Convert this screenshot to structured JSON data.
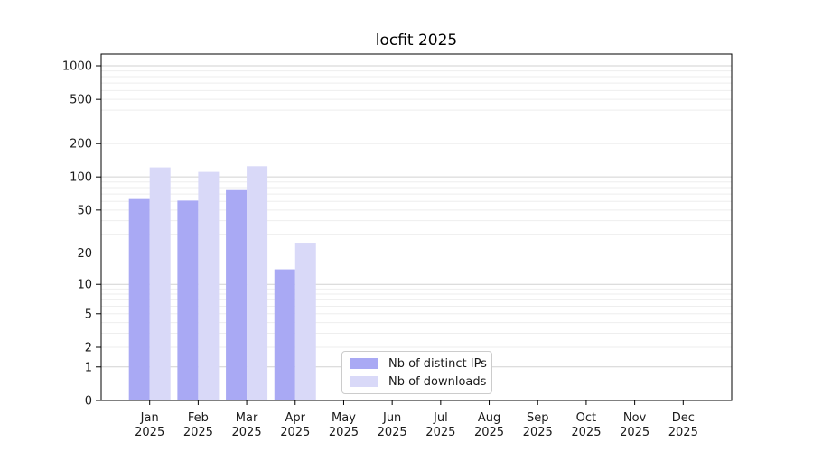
{
  "title": "locfit 2025",
  "chart_data": {
    "type": "bar",
    "title": "locfit 2025",
    "categories": [
      "Jan 2025",
      "Feb 2025",
      "Mar 2025",
      "Apr 2025",
      "May 2025",
      "Jun 2025",
      "Jul 2025",
      "Aug 2025",
      "Sep 2025",
      "Oct 2025",
      "Nov 2025",
      "Dec 2025"
    ],
    "months": [
      "Jan",
      "Feb",
      "Mar",
      "Apr",
      "May",
      "Jun",
      "Jul",
      "Aug",
      "Sep",
      "Oct",
      "Nov",
      "Dec"
    ],
    "year_label": "2025",
    "series": [
      {
        "name": "Nb of distinct IPs",
        "color": "#a9a9f4",
        "values": [
          63,
          61,
          76,
          14,
          0,
          0,
          0,
          0,
          0,
          0,
          0,
          0
        ]
      },
      {
        "name": "Nb of downloads",
        "color": "#d9d9f8",
        "values": [
          122,
          111,
          125,
          25,
          0,
          0,
          0,
          0,
          0,
          0,
          0,
          0
        ]
      }
    ],
    "xlabel": "",
    "ylabel": "",
    "yscale": "log1p",
    "yticks": [
      0,
      1,
      2,
      5,
      10,
      20,
      50,
      100,
      200,
      500,
      1000
    ],
    "ylim": [
      0,
      1280
    ],
    "grid": "horizontal major (decades, darker) + minor (faint)",
    "legend_position": "inside bottom-center",
    "colors": {
      "bar_distinct_ips": "#a9a9f4",
      "bar_downloads": "#d9d9f8",
      "grid_major": "#d2d2d2",
      "grid_minor": "#eeeeee",
      "spine": "#000000",
      "text": "#1a1a1a",
      "legend_border": "#cccccc"
    }
  }
}
